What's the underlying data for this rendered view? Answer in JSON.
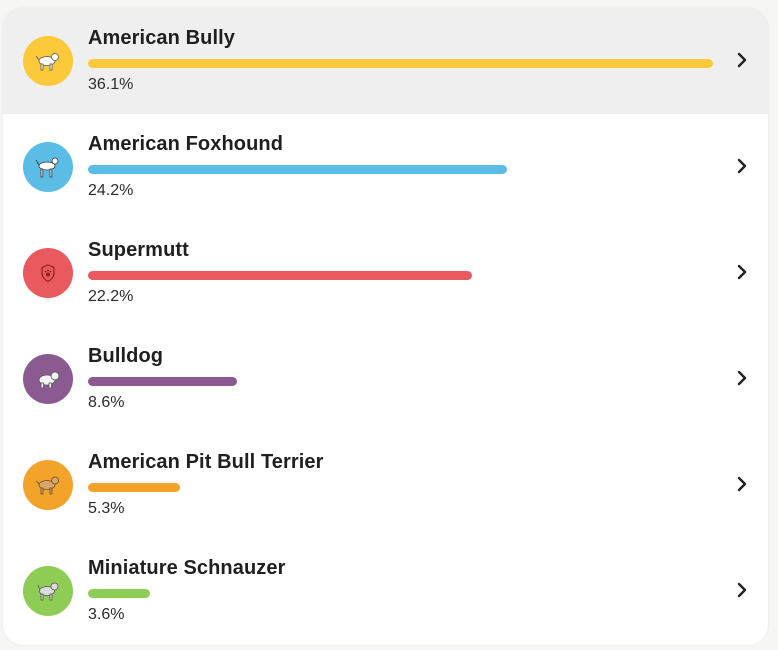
{
  "breeds": [
    {
      "name": "American Bully",
      "percent_label": "36.1%",
      "percent": 36.1,
      "color": "#fcc93a",
      "icon": "dog-icon",
      "selected": true
    },
    {
      "name": "American Foxhound",
      "percent_label": "24.2%",
      "percent": 24.2,
      "color": "#5bbde6",
      "icon": "dog-icon",
      "selected": false
    },
    {
      "name": "Supermutt",
      "percent_label": "22.2%",
      "percent": 22.2,
      "color": "#e95a5f",
      "icon": "shield-paw-icon",
      "selected": false
    },
    {
      "name": "Bulldog",
      "percent_label": "8.6%",
      "percent": 8.6,
      "color": "#8a5a91",
      "icon": "dog-icon",
      "selected": false
    },
    {
      "name": "American Pit Bull Terrier",
      "percent_label": "5.3%",
      "percent": 5.3,
      "color": "#f3a32a",
      "icon": "dog-icon",
      "selected": false
    },
    {
      "name": "Miniature Schnauzer",
      "percent_label": "3.6%",
      "percent": 3.6,
      "color": "#8fcc55",
      "icon": "dog-icon",
      "selected": false
    }
  ]
}
